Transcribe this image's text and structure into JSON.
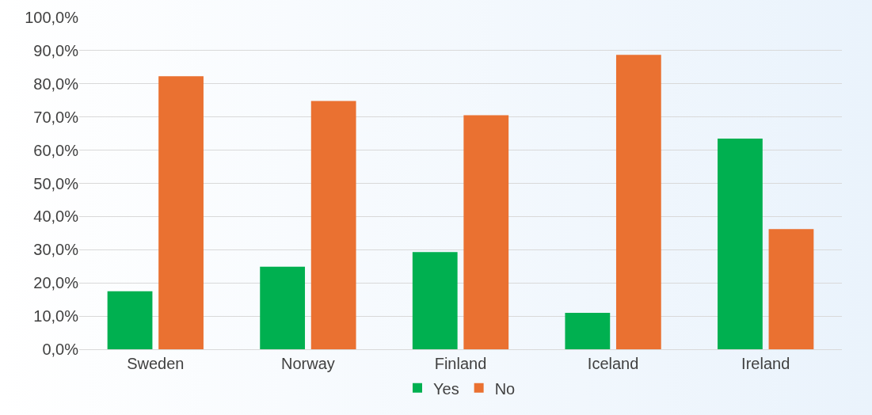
{
  "chart_data": {
    "type": "bar",
    "categories": [
      "Sweden",
      "Norway",
      "Finland",
      "Iceland",
      "Ireland"
    ],
    "series": [
      {
        "name": "Yes",
        "color": "#00b050",
        "values": [
          17.5,
          24.9,
          29.3,
          11.0,
          63.5
        ]
      },
      {
        "name": "No",
        "color": "#ea7131",
        "values": [
          82.3,
          74.8,
          70.5,
          88.7,
          36.2
        ]
      }
    ],
    "ylim": [
      0,
      100
    ],
    "yticks": [
      {
        "value": 0,
        "label": "0,0%"
      },
      {
        "value": 10,
        "label": "10,0%"
      },
      {
        "value": 20,
        "label": "20,0%"
      },
      {
        "value": 30,
        "label": "30,0%"
      },
      {
        "value": 40,
        "label": "40,0%"
      },
      {
        "value": 50,
        "label": "50,0%"
      },
      {
        "value": 60,
        "label": "60,0%"
      },
      {
        "value": 70,
        "label": "70,0%"
      },
      {
        "value": 80,
        "label": "80,0%"
      },
      {
        "value": 90,
        "label": "90,0%"
      },
      {
        "value": 100,
        "label": "100,0%"
      }
    ],
    "grid": "y",
    "legend": "bottom"
  }
}
